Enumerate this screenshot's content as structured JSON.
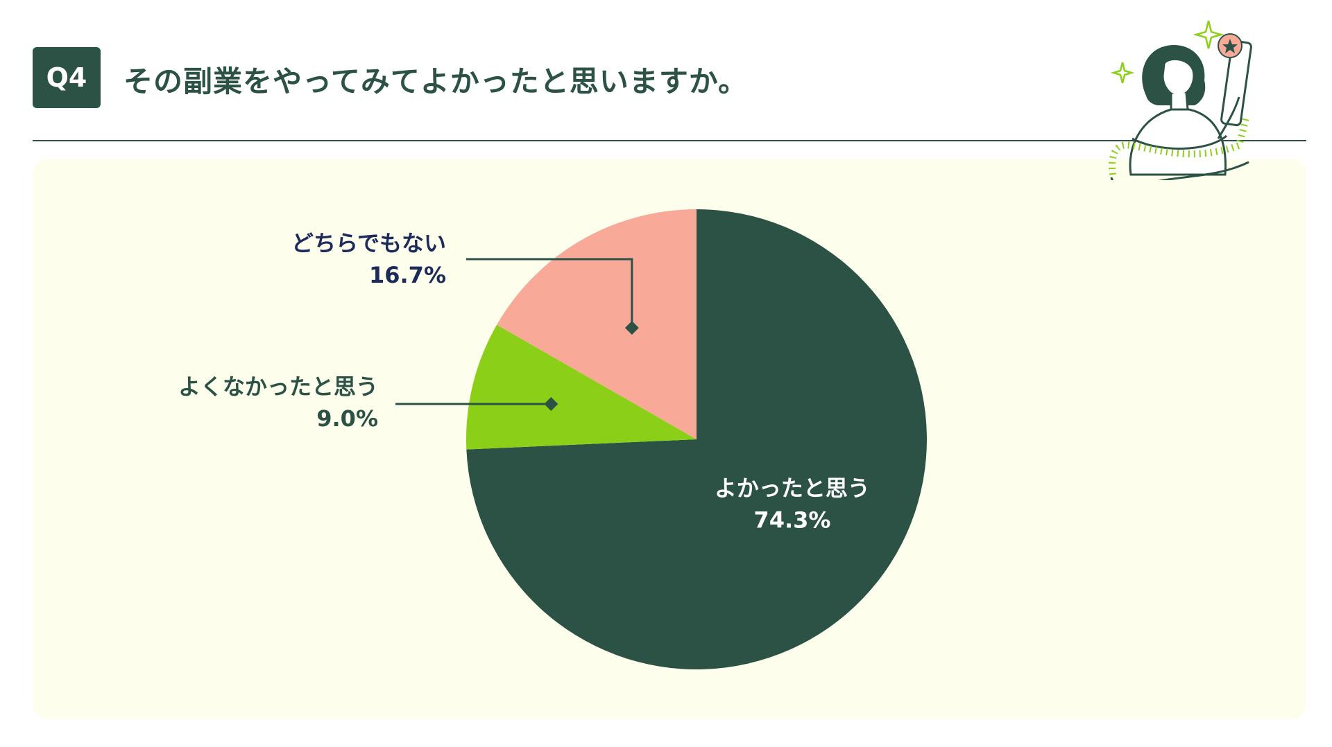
{
  "header": {
    "badge": "Q4",
    "title": "その副業をやってみてよかったと思いますか。"
  },
  "colors": {
    "dark_green": "#2c5246",
    "pink": "#f9a998",
    "lime": "#8ccf18",
    "panel_bg": "#fefeec",
    "navy_text": "#1c2b5a"
  },
  "illustration": {
    "name": "woman-with-phone-illustration"
  },
  "chart_data": {
    "type": "pie",
    "title": "",
    "start_angle": "12 o'clock",
    "direction": "clockwise",
    "slices": [
      {
        "label": "よかったと思う",
        "value": 74.3,
        "value_label": "74.3%",
        "color": "#2c5246",
        "label_color": "#ffffff",
        "label_placement": "inside"
      },
      {
        "label": "よくなかったと思う",
        "value": 9.0,
        "value_label": "9.0%",
        "color": "#8ccf18",
        "label_color": "#2c5246",
        "label_placement": "outside-left"
      },
      {
        "label": "どちらでもない",
        "value": 16.7,
        "value_label": "16.7%",
        "color": "#f9a998",
        "label_color": "#1c2b5a",
        "label_placement": "outside-upper-left"
      }
    ]
  }
}
